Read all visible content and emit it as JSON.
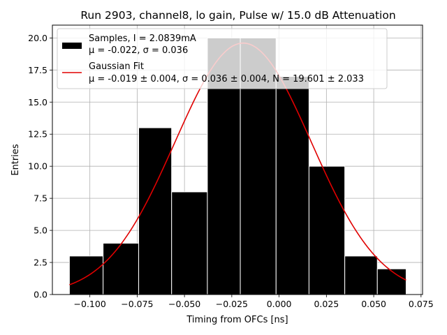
{
  "chart_data": {
    "type": "bar",
    "title": "Run 2903, channel8, lo gain, Pulse w/ 15.0 dB Attenuation",
    "xlabel": "Timing from OFCs [ns]",
    "ylabel": "Entries",
    "xlim": [
      -0.1198,
      0.0758
    ],
    "ylim": [
      0,
      21
    ],
    "grid": true,
    "legend_position": "top-left",
    "x_ticks": [
      -0.1,
      -0.075,
      -0.05,
      -0.025,
      0.0,
      0.025,
      0.05,
      0.075
    ],
    "x_tick_labels": [
      "−0.100",
      "−0.075",
      "−0.050",
      "−0.025",
      "0.000",
      "0.025",
      "0.050",
      "0.075"
    ],
    "y_ticks": [
      0,
      2.5,
      5,
      7.5,
      10,
      12.5,
      15,
      17.5,
      20
    ],
    "y_tick_labels": [
      "0.0",
      "2.5",
      "5.0",
      "7.5",
      "10.0",
      "12.5",
      "15.0",
      "17.5",
      "20.0"
    ],
    "bins": [
      {
        "left": -0.1108,
        "right": -0.093,
        "count": 3
      },
      {
        "left": -0.093,
        "right": -0.0742,
        "count": 4
      },
      {
        "left": -0.0742,
        "right": -0.0568,
        "count": 13
      },
      {
        "left": -0.0568,
        "right": -0.0379,
        "count": 8
      },
      {
        "left": -0.0379,
        "right": -0.0205,
        "count": 20
      },
      {
        "left": -0.0205,
        "right": -0.0016,
        "count": 20
      },
      {
        "left": -0.0016,
        "right": 0.0158,
        "count": 17
      },
      {
        "left": 0.0158,
        "right": 0.0347,
        "count": 10
      },
      {
        "left": 0.0347,
        "right": 0.0519,
        "count": 3
      },
      {
        "left": 0.0519,
        "right": 0.0671,
        "count": 2
      }
    ],
    "histogram_color": "#000000",
    "fit": {
      "mu": -0.019,
      "sigma": 0.036,
      "N": 19.601,
      "x_range": [
        -0.1108,
        0.0671
      ],
      "color": "#e00000"
    },
    "legend": [
      {
        "key": "samples",
        "line1": "Samples, I = 2.0839mA",
        "line2": "μ = -0.022, σ = 0.036"
      },
      {
        "key": "fit",
        "line1": "Gaussian Fit",
        "line2": "μ = -0.019 ± 0.004, σ = 0.036 ± 0.004, N = 19.601 ± 2.033"
      }
    ]
  }
}
